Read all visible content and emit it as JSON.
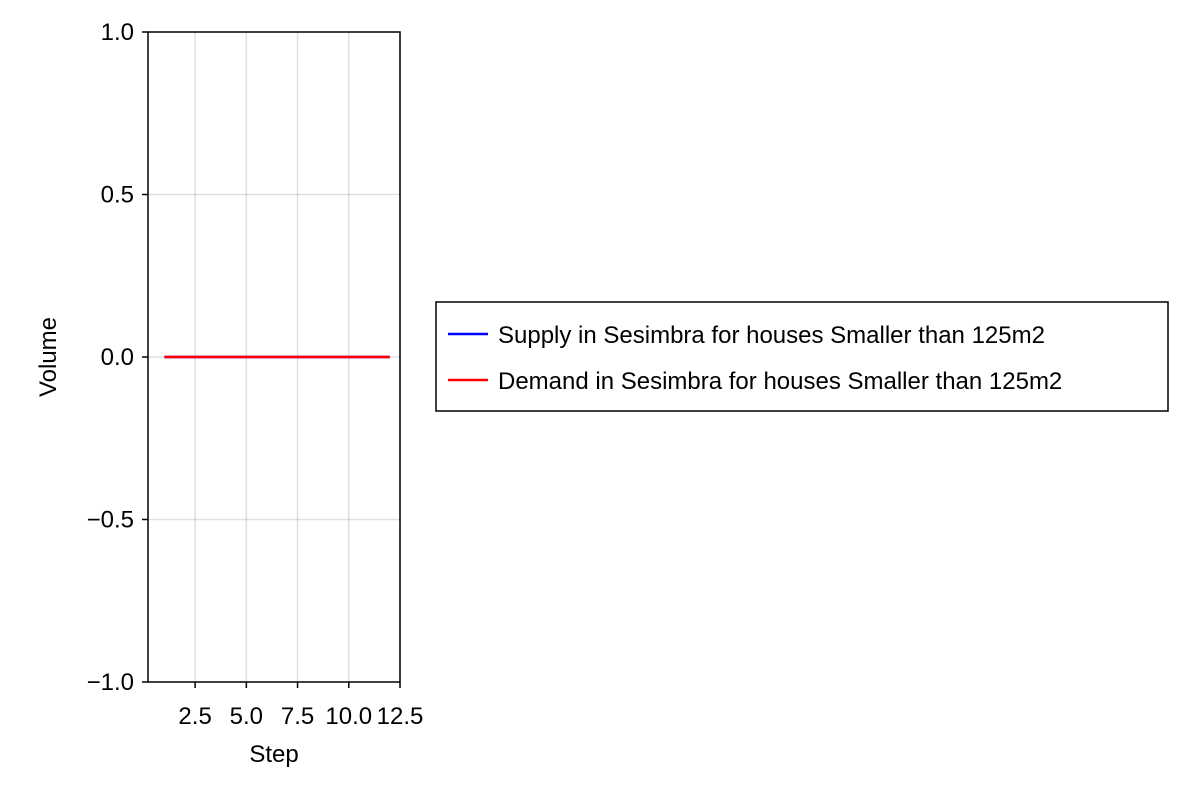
{
  "chart_data": {
    "type": "line",
    "xlabel": "Step",
    "ylabel": "Volume",
    "xlim": [
      0.2,
      12.5
    ],
    "ylim": [
      -1.0,
      1.0
    ],
    "x_ticks": [
      2.5,
      5.0,
      7.5,
      10.0,
      12.5
    ],
    "x_tick_labels": [
      "2.5",
      "5.0",
      "7.5",
      "10.0",
      "12.5"
    ],
    "y_ticks": [
      -1.0,
      -0.5,
      0.0,
      0.5,
      1.0
    ],
    "y_tick_labels": [
      "−1.0",
      "−0.5",
      "0.0",
      "0.5",
      "1.0"
    ],
    "grid": true,
    "legend_position": "right",
    "series": [
      {
        "name": "Supply in Sesimbra for houses Smaller than 125m2",
        "color": "#0000ff",
        "x": [
          1,
          2,
          3,
          4,
          5,
          6,
          7,
          8,
          9,
          10,
          11,
          12
        ],
        "y": [
          0,
          0,
          0,
          0,
          0,
          0,
          0,
          0,
          0,
          0,
          0,
          0
        ]
      },
      {
        "name": "Demand in Sesimbra for houses Smaller than 125m2",
        "color": "#ff0000",
        "x": [
          1,
          2,
          3,
          4,
          5,
          6,
          7,
          8,
          9,
          10,
          11,
          12
        ],
        "y": [
          0,
          0,
          0,
          0,
          0,
          0,
          0,
          0,
          0,
          0,
          0,
          0
        ]
      }
    ]
  }
}
